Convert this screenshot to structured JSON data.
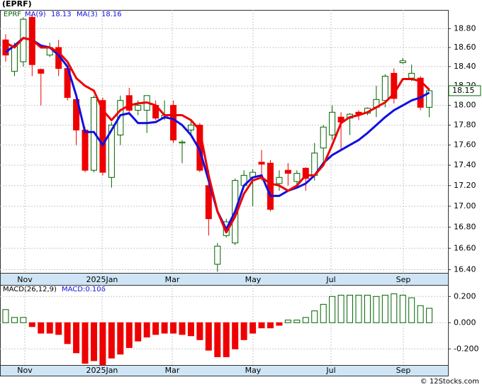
{
  "chart_data": {
    "type": "candlestick",
    "title": "(EPRF)",
    "symbol": "EPRF",
    "log": true,
    "grid": true,
    "up_color": "#006400",
    "down_color": "#ee0000",
    "ohlc": {
      "open": [
        18.68,
        18.35,
        18.45,
        18.92,
        18.37,
        18.52,
        18.6,
        18.38,
        18.06,
        17.75,
        17.35,
        18.05,
        17.28,
        17.7,
        18.1,
        17.95,
        17.95,
        18.0,
        17.87,
        18.0,
        17.62,
        17.75,
        17.8,
        17.2,
        16.45,
        16.72,
        16.65,
        17.2,
        17.28,
        17.43,
        17.42,
        17.22,
        17.35,
        17.24,
        17.37,
        17.3,
        17.57,
        17.7,
        17.88,
        17.87,
        17.93,
        17.92,
        17.98,
        18.05,
        18.33,
        18.44,
        18.28,
        18.28,
        17.98
      ],
      "high": [
        18.74,
        18.65,
        18.92,
        18.95,
        18.38,
        18.65,
        18.68,
        18.4,
        18.08,
        17.78,
        18.1,
        18.08,
        17.83,
        18.1,
        18.18,
        18.05,
        18.1,
        18.05,
        18.05,
        18.05,
        17.65,
        17.85,
        17.82,
        17.35,
        16.65,
        16.88,
        17.27,
        17.35,
        17.36,
        17.55,
        17.45,
        17.35,
        17.42,
        17.35,
        17.38,
        17.62,
        17.8,
        18.0,
        17.93,
        17.92,
        17.95,
        17.98,
        18.2,
        18.32,
        18.38,
        18.49,
        18.42,
        18.3,
        18.17
      ],
      "low": [
        18.45,
        18.3,
        18.4,
        18.3,
        18.0,
        18.5,
        18.3,
        18.05,
        17.6,
        17.33,
        17.33,
        17.3,
        17.18,
        17.6,
        17.9,
        17.9,
        17.72,
        17.85,
        17.85,
        17.62,
        17.42,
        17.7,
        17.33,
        16.72,
        16.38,
        16.7,
        16.63,
        17.18,
        17.0,
        17.25,
        16.95,
        17.15,
        17.2,
        17.2,
        17.15,
        17.25,
        17.42,
        17.65,
        17.55,
        17.7,
        17.85,
        17.9,
        17.88,
        17.98,
        18.02,
        18.43,
        18.25,
        17.95,
        17.88
      ],
      "close": [
        18.52,
        18.62,
        18.9,
        18.42,
        18.33,
        18.6,
        18.38,
        18.08,
        17.75,
        17.35,
        18.08,
        17.33,
        17.8,
        18.05,
        17.95,
        18.0,
        18.1,
        17.87,
        17.9,
        17.65,
        17.63,
        17.8,
        17.35,
        16.88,
        16.62,
        16.85,
        17.25,
        17.3,
        17.33,
        17.41,
        16.97,
        17.28,
        17.32,
        17.32,
        17.27,
        17.52,
        17.78,
        17.93,
        17.83,
        17.91,
        17.91,
        17.97,
        18.06,
        18.3,
        18.07,
        18.46,
        18.33,
        17.98,
        18.15
      ]
    },
    "series": [
      {
        "name": "MA(9)",
        "color": "#1010e0",
        "last": 18.13,
        "values": [
          18.55,
          18.62,
          18.7,
          18.68,
          18.62,
          18.6,
          18.52,
          18.4,
          18.1,
          17.73,
          17.73,
          17.6,
          17.75,
          17.9,
          17.92,
          17.82,
          17.82,
          17.83,
          17.88,
          17.86,
          17.8,
          17.7,
          17.55,
          17.25,
          16.95,
          16.78,
          16.95,
          17.2,
          17.28,
          17.3,
          17.1,
          17.1,
          17.15,
          17.18,
          17.22,
          17.3,
          17.42,
          17.5,
          17.55,
          17.6,
          17.65,
          17.72,
          17.8,
          17.88,
          17.95,
          18.0,
          18.05,
          18.08,
          18.13
        ]
      },
      {
        "name": "MA(3)",
        "color": "#ee0000",
        "last": 18.16,
        "values": [
          18.65,
          18.6,
          18.7,
          18.68,
          18.6,
          18.6,
          18.55,
          18.45,
          18.28,
          18.2,
          18.15,
          17.95,
          17.85,
          17.95,
          18.0,
          18.02,
          18.03,
          18.0,
          17.9,
          17.9,
          17.9,
          17.85,
          17.75,
          17.3,
          16.95,
          16.75,
          16.9,
          17.12,
          17.25,
          17.28,
          17.22,
          17.2,
          17.15,
          17.2,
          17.3,
          17.3,
          17.4,
          17.6,
          17.82,
          17.88,
          17.9,
          17.93,
          17.98,
          18.03,
          18.12,
          18.27,
          18.27,
          18.25,
          18.16
        ]
      }
    ],
    "close_label": 18.15,
    "ylim": [
      16.37,
      19.0
    ],
    "yticks": [
      {
        "value": 16.4,
        "label": "16.40"
      },
      {
        "value": 16.6,
        "label": "16.60"
      },
      {
        "value": 16.8,
        "label": "16.80"
      },
      {
        "value": 17.0,
        "label": "17.00"
      },
      {
        "value": 17.2,
        "label": "17.20"
      },
      {
        "value": 17.4,
        "label": "17.40"
      },
      {
        "value": 17.6,
        "label": "17.60"
      },
      {
        "value": 17.8,
        "label": "17.80"
      },
      {
        "value": 18.0,
        "label": "18.00"
      },
      {
        "value": 18.2,
        "label": "18.20"
      },
      {
        "value": 18.4,
        "label": "18.40"
      },
      {
        "value": 18.6,
        "label": "18.60"
      },
      {
        "value": 18.8,
        "label": "18.80"
      }
    ],
    "xlim": [
      -0.64,
      50.12
    ],
    "xticks": [
      {
        "value": 2.17,
        "label": "Nov"
      },
      {
        "value": 10.92,
        "label": "2025Jan"
      },
      {
        "value": 18.88,
        "label": "Mar"
      },
      {
        "value": 28.03,
        "label": "May"
      },
      {
        "value": 36.87,
        "label": "Jul"
      },
      {
        "value": 45.06,
        "label": "Sep"
      }
    ],
    "macd": {
      "type": "bar",
      "label": "MACD(26,12,9)",
      "value_label": "MACD:0.106",
      "up_color": "#006400",
      "down_color": "#ee0000",
      "values": [
        0.1,
        0.04,
        0.04,
        -0.03,
        -0.08,
        -0.08,
        -0.09,
        -0.16,
        -0.23,
        -0.31,
        -0.29,
        -0.32,
        -0.27,
        -0.24,
        -0.19,
        -0.14,
        -0.11,
        -0.09,
        -0.08,
        -0.08,
        -0.09,
        -0.1,
        -0.13,
        -0.21,
        -0.26,
        -0.26,
        -0.2,
        -0.13,
        -0.08,
        -0.04,
        -0.04,
        -0.02,
        0.02,
        0.02,
        0.04,
        0.09,
        0.14,
        0.2,
        0.21,
        0.21,
        0.21,
        0.21,
        0.2,
        0.21,
        0.22,
        0.21,
        0.19,
        0.13,
        0.11
      ],
      "ylim": [
        -0.323,
        0.288
      ],
      "yticks": [
        {
          "value": -0.2,
          "label": "-0.200"
        },
        {
          "value": 0,
          "label": "0.000"
        },
        {
          "value": 0.2,
          "label": "0.200"
        }
      ]
    },
    "source": "© 12Stocks.com"
  }
}
